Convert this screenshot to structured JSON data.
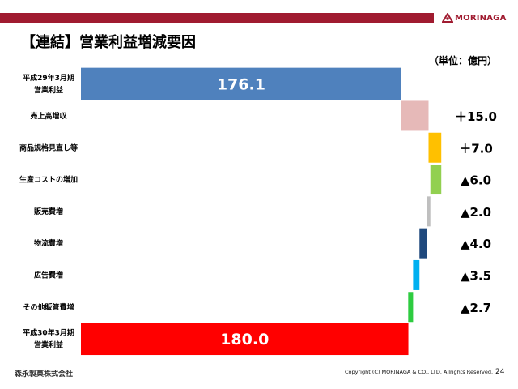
{
  "header": {
    "title": "【連結】営業利益増減要因",
    "unit": "（単位：億円）",
    "brand": "MORINAGA",
    "brand_color": "#a01b30"
  },
  "footer": {
    "company": "森永製菓株式会社",
    "copyright": "Copyright (C) MORINAGA & CO., LTD. Allrights Reserved.",
    "page": "24"
  },
  "chart_data": {
    "type": "waterfall",
    "title": "【連結】営業利益増減要因",
    "unit": "億円",
    "xlim": [
      0,
      198
    ],
    "items": [
      {
        "label_lines": [
          "平成29年3月期",
          "営業利益"
        ],
        "kind": "total",
        "value": 176.1,
        "display": "176.1",
        "color": "#4f81bd"
      },
      {
        "label_lines": [
          "売上高増収"
        ],
        "kind": "delta",
        "value": 15.0,
        "display": "＋15.0",
        "color": "#e6b9b8"
      },
      {
        "label_lines": [
          "商品規格見直し等"
        ],
        "kind": "delta",
        "value": 7.0,
        "display": "＋7.0",
        "color": "#ffc000"
      },
      {
        "label_lines": [
          "生産コストの増加"
        ],
        "kind": "delta",
        "value": -6.0,
        "display": "▲6.0",
        "color": "#92d050"
      },
      {
        "label_lines": [
          "販売費増"
        ],
        "kind": "delta",
        "value": -2.0,
        "display": "▲2.0",
        "color": "#bfbfbf"
      },
      {
        "label_lines": [
          "物流費増"
        ],
        "kind": "delta",
        "value": -4.0,
        "display": "▲4.0",
        "color": "#1f497d"
      },
      {
        "label_lines": [
          "広告費増"
        ],
        "kind": "delta",
        "value": -3.5,
        "display": "▲3.5",
        "color": "#00b0f0"
      },
      {
        "label_lines": [
          "その他販管費増"
        ],
        "kind": "delta",
        "value": -2.7,
        "display": "▲2.7",
        "color": "#2ecc40"
      },
      {
        "label_lines": [
          "平成30年3月期",
          "営業利益"
        ],
        "kind": "total",
        "value": 180.0,
        "display": "180.0",
        "color": "#ff0000"
      }
    ]
  }
}
